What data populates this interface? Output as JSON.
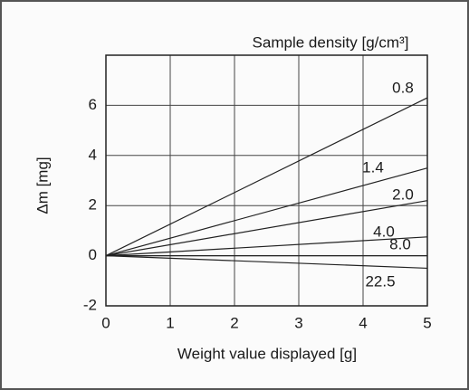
{
  "chart_data": {
    "type": "line",
    "legend_title": "Sample density [g/cm³]",
    "ylabel": "Δm [mg]",
    "xlabel": "Weight value displayed [g]",
    "x": [
      0,
      5
    ],
    "series": [
      {
        "name": "0.8",
        "color": "#222222",
        "values": [
          0,
          6.3
        ]
      },
      {
        "name": "1.4",
        "color": "#222222",
        "values": [
          0,
          3.5
        ]
      },
      {
        "name": "2.0",
        "color": "#222222",
        "values": [
          0,
          2.2
        ]
      },
      {
        "name": "4.0",
        "color": "#222222",
        "values": [
          0,
          0.75
        ]
      },
      {
        "name": "8.0",
        "color": "#222222",
        "values": [
          0,
          0
        ]
      },
      {
        "name": "22.5",
        "color": "#222222",
        "values": [
          0,
          -0.5
        ]
      }
    ],
    "xlim": [
      0,
      5
    ],
    "xticks": [
      0,
      1,
      2,
      3,
      4,
      5
    ],
    "ylim": [
      -2,
      8
    ],
    "yticks": [
      -2,
      0,
      2,
      4,
      6
    ],
    "grid": true
  }
}
